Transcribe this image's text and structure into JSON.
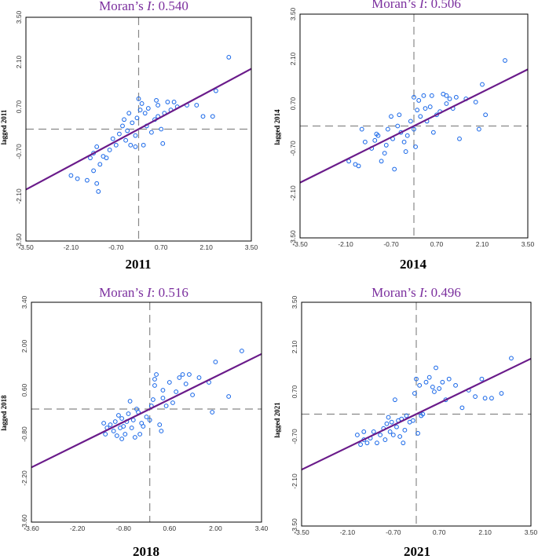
{
  "colors": {
    "title": "#7b2f9e",
    "regression_line": "#6a1b8a",
    "points": "#1565e8",
    "reference": "#888888"
  },
  "chart_data": [
    {
      "type": "scatter",
      "year": "2011",
      "title_prefix": "Moran’s ",
      "title_stat": "I",
      "title_value": ": 0.540",
      "xlabel": "2011",
      "ylabel": "lagged 2011",
      "xlim": [
        -3.5,
        3.5
      ],
      "ylim": [
        -3.5,
        3.5
      ],
      "xticks": [
        "-3.50",
        "-2.10",
        "-0.70",
        "0.70",
        "2.10",
        "3.50"
      ],
      "yticks": [
        "-3.50",
        "-2.10",
        "-0.70",
        "0.70",
        "2.10",
        "3.50"
      ],
      "xtick_values": [
        -3.5,
        -2.1,
        -0.7,
        0.7,
        2.1,
        3.5
      ],
      "ytick_values": [
        -3.5,
        -2.1,
        -0.7,
        0.7,
        2.1,
        3.5
      ],
      "slope": 0.54,
      "points": [
        [
          -2.1,
          -1.45
        ],
        [
          -1.9,
          -1.55
        ],
        [
          -1.6,
          -1.6
        ],
        [
          -1.5,
          -0.9
        ],
        [
          -1.4,
          -0.75
        ],
        [
          -1.2,
          -1.1
        ],
        [
          -1.1,
          -0.85
        ],
        [
          -1.0,
          -0.9
        ],
        [
          -1.3,
          -0.55
        ],
        [
          -0.9,
          -0.65
        ],
        [
          -0.8,
          -0.3
        ],
        [
          -0.7,
          -0.5
        ],
        [
          -0.6,
          -0.15
        ],
        [
          -0.5,
          0.1
        ],
        [
          -0.4,
          -0.35
        ],
        [
          -0.35,
          -0.05
        ],
        [
          -0.3,
          0.5
        ],
        [
          -0.25,
          -0.5
        ],
        [
          -0.2,
          0.2
        ],
        [
          -0.1,
          -0.2
        ],
        [
          -0.05,
          0.35
        ],
        [
          0.0,
          0.95
        ],
        [
          0.05,
          0.6
        ],
        [
          0.1,
          0.8
        ],
        [
          0.15,
          -0.5
        ],
        [
          0.2,
          0.5
        ],
        [
          0.25,
          0.1
        ],
        [
          0.3,
          0.65
        ],
        [
          0.4,
          -0.1
        ],
        [
          0.5,
          0.3
        ],
        [
          0.55,
          0.9
        ],
        [
          0.6,
          0.4
        ],
        [
          0.7,
          0.0
        ],
        [
          0.75,
          -0.45
        ],
        [
          0.8,
          0.5
        ],
        [
          0.9,
          0.85
        ],
        [
          1.0,
          0.6
        ],
        [
          1.2,
          0.7
        ],
        [
          1.5,
          0.75
        ],
        [
          1.8,
          0.75
        ],
        [
          2.0,
          0.4
        ],
        [
          2.3,
          0.4
        ],
        [
          2.4,
          1.2
        ],
        [
          2.8,
          2.25
        ],
        [
          -1.4,
          -1.3
        ],
        [
          -1.3,
          -1.7
        ],
        [
          -1.25,
          -1.95
        ],
        [
          -0.45,
          0.3
        ],
        [
          0.6,
          0.75
        ],
        [
          1.1,
          0.85
        ],
        [
          -0.1,
          -0.55
        ]
      ]
    },
    {
      "type": "scatter",
      "year": "2014",
      "title_prefix": "Moran’s ",
      "title_stat": "I",
      "title_value": ": 0.506",
      "xlabel": "2014",
      "ylabel": "lagged 2014",
      "xlim": [
        -3.5,
        3.5
      ],
      "ylim": [
        -3.5,
        3.5
      ],
      "xticks": [
        "-3.50",
        "-2.10",
        "-0.70",
        "0.70",
        "2.10",
        "3.50"
      ],
      "yticks": [
        "-3.50",
        "-2.10",
        "-0.70",
        "0.70",
        "2.10",
        "3.50"
      ],
      "xtick_values": [
        -3.5,
        -2.1,
        -0.7,
        0.7,
        2.1,
        3.5
      ],
      "ytick_values": [
        -3.5,
        -2.1,
        -0.7,
        0.7,
        2.1,
        3.5
      ],
      "slope": 0.506,
      "points": [
        [
          -2.0,
          -1.1
        ],
        [
          -1.8,
          -1.2
        ],
        [
          -1.7,
          -1.25
        ],
        [
          -1.6,
          -0.1
        ],
        [
          -1.5,
          -0.5
        ],
        [
          -1.3,
          -0.7
        ],
        [
          -1.2,
          -0.45
        ],
        [
          -1.1,
          -0.3
        ],
        [
          -1.0,
          -1.1
        ],
        [
          -0.9,
          -0.85
        ],
        [
          -0.85,
          -0.6
        ],
        [
          -0.8,
          -0.1
        ],
        [
          -0.7,
          0.3
        ],
        [
          -0.65,
          -0.4
        ],
        [
          -0.6,
          -1.35
        ],
        [
          -0.5,
          0.0
        ],
        [
          -0.45,
          0.35
        ],
        [
          -0.4,
          -0.2
        ],
        [
          -0.3,
          -0.5
        ],
        [
          -0.2,
          -0.3
        ],
        [
          -0.1,
          0.15
        ],
        [
          0.0,
          -0.1
        ],
        [
          0.05,
          -0.65
        ],
        [
          0.1,
          0.5
        ],
        [
          0.15,
          0.8
        ],
        [
          0.2,
          0.3
        ],
        [
          0.3,
          0.95
        ],
        [
          0.4,
          0.15
        ],
        [
          0.5,
          0.6
        ],
        [
          0.55,
          0.95
        ],
        [
          0.6,
          -0.2
        ],
        [
          0.7,
          0.35
        ],
        [
          0.8,
          0.45
        ],
        [
          0.9,
          1.0
        ],
        [
          1.0,
          0.7
        ],
        [
          1.1,
          0.85
        ],
        [
          1.2,
          0.55
        ],
        [
          1.3,
          0.9
        ],
        [
          1.4,
          -0.4
        ],
        [
          1.6,
          0.85
        ],
        [
          1.9,
          0.75
        ],
        [
          2.0,
          -0.1
        ],
        [
          2.1,
          1.3
        ],
        [
          2.2,
          0.35
        ],
        [
          2.8,
          2.05
        ],
        [
          -1.15,
          -0.25
        ],
        [
          0.35,
          0.55
        ],
        [
          1.0,
          0.95
        ],
        [
          -0.25,
          -0.8
        ],
        [
          0.0,
          0.9
        ]
      ]
    },
    {
      "type": "scatter",
      "year": "2018",
      "title_prefix": "Moran’s ",
      "title_stat": "I",
      "title_value": ": 0.516",
      "xlabel": "2018",
      "ylabel": "lagged 2018",
      "xlim": [
        -3.6,
        3.4
      ],
      "ylim": [
        -3.6,
        3.4
      ],
      "xticks": [
        "-3.60",
        "-2.20",
        "-0.80",
        "0.60",
        "2.00",
        "3.40"
      ],
      "yticks": [
        "-3.60",
        "-2.20",
        "-0.80",
        "0.60",
        "2.00",
        "3.40"
      ],
      "xtick_values": [
        -3.6,
        -2.2,
        -0.8,
        0.6,
        2.0,
        3.4
      ],
      "ytick_values": [
        -3.6,
        -2.2,
        -0.8,
        0.6,
        2.0,
        3.4
      ],
      "slope": 0.516,
      "points": [
        [
          -1.4,
          -0.45
        ],
        [
          -1.35,
          -0.8
        ],
        [
          -1.3,
          -0.6
        ],
        [
          -1.2,
          -0.5
        ],
        [
          -1.1,
          -0.7
        ],
        [
          -1.05,
          -0.4
        ],
        [
          -1.0,
          -0.85
        ],
        [
          -0.95,
          -0.2
        ],
        [
          -0.9,
          -0.6
        ],
        [
          -0.85,
          -0.3
        ],
        [
          -0.8,
          -0.55
        ],
        [
          -0.75,
          -0.8
        ],
        [
          -0.7,
          -0.4
        ],
        [
          -0.65,
          -0.15
        ],
        [
          -0.6,
          0.25
        ],
        [
          -0.55,
          -0.6
        ],
        [
          -0.5,
          -0.35
        ],
        [
          -0.45,
          -0.9
        ],
        [
          -0.4,
          0.0
        ],
        [
          -0.35,
          -0.1
        ],
        [
          -0.3,
          -0.8
        ],
        [
          -0.25,
          -0.45
        ],
        [
          -0.2,
          -0.55
        ],
        [
          -0.1,
          -0.25
        ],
        [
          0.0,
          -0.35
        ],
        [
          0.05,
          0.1
        ],
        [
          0.1,
          0.3
        ],
        [
          0.15,
          0.95
        ],
        [
          0.2,
          1.1
        ],
        [
          0.3,
          -0.5
        ],
        [
          0.35,
          -0.7
        ],
        [
          0.4,
          0.6
        ],
        [
          0.5,
          0.1
        ],
        [
          0.6,
          0.85
        ],
        [
          0.7,
          0.2
        ],
        [
          0.8,
          0.55
        ],
        [
          0.9,
          1.0
        ],
        [
          1.0,
          1.1
        ],
        [
          1.1,
          0.8
        ],
        [
          1.2,
          1.1
        ],
        [
          1.3,
          0.45
        ],
        [
          1.5,
          1.0
        ],
        [
          1.8,
          0.85
        ],
        [
          1.9,
          -0.1
        ],
        [
          2.0,
          1.5
        ],
        [
          2.4,
          0.4
        ],
        [
          2.8,
          1.85
        ],
        [
          0.15,
          0.75
        ],
        [
          -0.85,
          -0.95
        ],
        [
          0.4,
          0.35
        ]
      ]
    },
    {
      "type": "scatter",
      "year": "2021",
      "title_prefix": "Moran’s ",
      "title_stat": "I",
      "title_value": ": 0.496",
      "xlabel": "2021",
      "ylabel": "lagged 2021",
      "xlim": [
        -3.5,
        3.5
      ],
      "ylim": [
        -3.5,
        3.5
      ],
      "xticks": [
        "-3.50",
        "-2.10",
        "-0.70",
        "0.70",
        "2.10",
        "3.50"
      ],
      "yticks": [
        "-3.50",
        "-2.10",
        "-0.70",
        "0.70",
        "2.10",
        "3.50"
      ],
      "xtick_values": [
        -3.5,
        -2.1,
        -0.7,
        0.7,
        2.1,
        3.5
      ],
      "ytick_values": [
        -3.5,
        -2.1,
        -0.7,
        0.7,
        2.1,
        3.5
      ],
      "slope": 0.496,
      "points": [
        [
          -1.8,
          -0.65
        ],
        [
          -1.7,
          -0.95
        ],
        [
          -1.6,
          -0.8
        ],
        [
          -1.5,
          -0.9
        ],
        [
          -1.4,
          -0.75
        ],
        [
          -1.3,
          -0.55
        ],
        [
          -1.2,
          -0.9
        ],
        [
          -1.1,
          -0.65
        ],
        [
          -1.0,
          -0.45
        ],
        [
          -0.95,
          -0.8
        ],
        [
          -0.9,
          -0.3
        ],
        [
          -0.85,
          -0.1
        ],
        [
          -0.8,
          -0.55
        ],
        [
          -0.75,
          -0.25
        ],
        [
          -0.7,
          -0.65
        ],
        [
          -0.65,
          0.45
        ],
        [
          -0.6,
          -0.4
        ],
        [
          -0.55,
          -0.2
        ],
        [
          -0.5,
          -0.7
        ],
        [
          -0.45,
          -0.15
        ],
        [
          -0.4,
          -0.9
        ],
        [
          -0.35,
          -0.5
        ],
        [
          -0.3,
          -0.05
        ],
        [
          -0.2,
          -0.25
        ],
        [
          -0.1,
          -0.2
        ],
        [
          -0.05,
          0.65
        ],
        [
          0.0,
          1.1
        ],
        [
          0.05,
          -0.6
        ],
        [
          0.1,
          0.9
        ],
        [
          0.15,
          -0.05
        ],
        [
          0.2,
          0.0
        ],
        [
          0.3,
          1.0
        ],
        [
          0.4,
          1.15
        ],
        [
          0.5,
          0.85
        ],
        [
          0.6,
          1.45
        ],
        [
          0.7,
          0.8
        ],
        [
          0.8,
          1.0
        ],
        [
          0.9,
          0.45
        ],
        [
          1.0,
          1.1
        ],
        [
          1.2,
          0.9
        ],
        [
          1.4,
          0.2
        ],
        [
          1.6,
          0.75
        ],
        [
          1.8,
          0.55
        ],
        [
          2.0,
          1.1
        ],
        [
          2.1,
          0.5
        ],
        [
          2.3,
          0.5
        ],
        [
          2.6,
          0.65
        ],
        [
          2.9,
          1.75
        ],
        [
          -1.6,
          -0.55
        ],
        [
          0.55,
          0.7
        ]
      ]
    }
  ]
}
